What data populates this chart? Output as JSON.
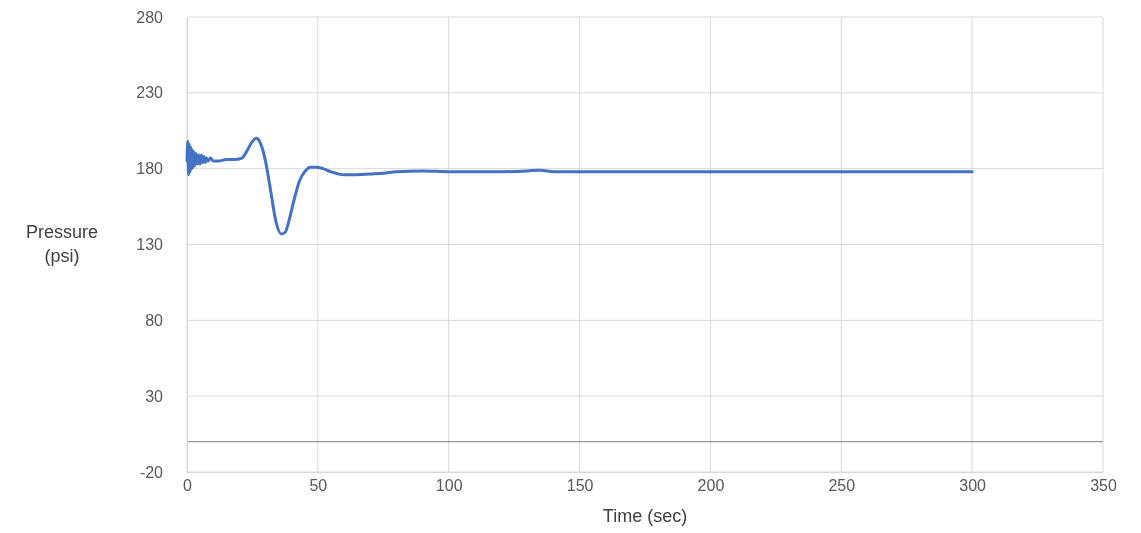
{
  "chart_data": {
    "type": "line",
    "xlabel": "Time (sec)",
    "ylabel": "Pressure (psi)",
    "x": [
      0,
      0.3,
      0.6,
      0.9,
      1.2,
      1.5,
      1.8,
      2.1,
      2.4,
      2.7,
      3,
      3.5,
      4,
      4.5,
      5,
      5.5,
      6,
      6.5,
      7,
      7.5,
      8,
      9,
      10,
      12,
      15,
      18,
      21,
      23,
      25,
      26.5,
      28,
      30,
      32,
      34,
      36,
      37.5,
      39,
      41,
      43,
      45,
      47,
      49.5,
      52,
      55,
      60,
      65,
      70,
      75,
      80,
      90,
      100,
      110,
      120,
      130,
      135,
      140,
      150,
      200,
      250,
      300
    ],
    "series": [
      {
        "color": "#4472c4",
        "values": [
          185,
          198,
          176,
          196,
          178,
          194,
          180,
          192,
          181,
          191,
          182,
          190,
          183,
          189,
          183,
          189,
          184,
          188,
          184,
          187,
          185,
          187,
          185,
          185,
          186,
          186,
          187,
          192,
          198,
          200,
          197,
          185,
          165,
          145,
          137,
          138,
          146,
          160,
          172,
          178,
          181,
          181,
          180,
          178,
          176,
          176,
          176.5,
          177,
          178,
          178.5,
          178,
          178,
          178,
          178.5,
          179,
          178,
          178,
          178,
          178,
          178
        ]
      }
    ],
    "xlim": [
      0,
      350
    ],
    "xticks": [
      0,
      50,
      100,
      150,
      200,
      250,
      300,
      350
    ],
    "ylim": [
      -20,
      280
    ],
    "yticks": [
      -20,
      30,
      80,
      130,
      180,
      230,
      280
    ],
    "grid": true
  }
}
